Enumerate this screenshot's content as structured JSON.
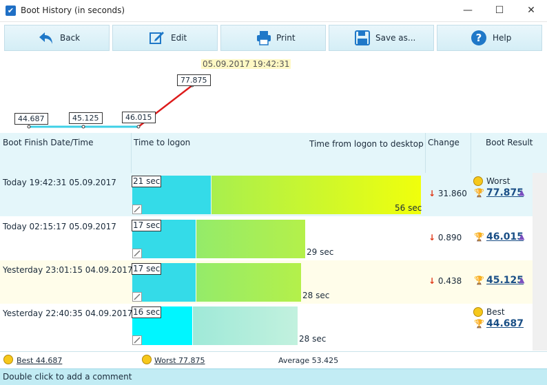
{
  "window": {
    "title": "Boot History (in seconds)",
    "minimize_glyph": "—",
    "maximize_glyph": "☐",
    "close_glyph": "✕"
  },
  "toolbar": {
    "back_label": "Back",
    "edit_label": "Edit",
    "print_label": "Print",
    "save_label": "Save as...",
    "help_label": "Help"
  },
  "chart": {
    "date_label": "05.09.2017 19:42:31",
    "points": [
      "44.687",
      "45.125",
      "46.015",
      "77.875"
    ]
  },
  "table": {
    "headers": {
      "date": "Boot Finish Date/Time",
      "logon": "Time to logon",
      "desktop": "Time from logon to desktop",
      "change": "Change",
      "result": "Boot Result"
    },
    "rows": [
      {
        "date": "Today  19:42:31 05.09.2017",
        "logon": "21 sec",
        "logon_seconds": 21,
        "desktop": "56 sec",
        "desktop_seconds": 56,
        "change": "31.860",
        "result_label": "Worst",
        "result": "77.875",
        "bg": "#e4f6fa",
        "logon_color": "#34dbe8",
        "desk_gradient": "linear-gradient(90deg, #a8ef4e, #f0ff0c)"
      },
      {
        "date": "Today  02:15:17 05.09.2017",
        "logon": "17 sec",
        "logon_seconds": 17,
        "desktop": "29 sec",
        "desktop_seconds": 29,
        "change": "0.890",
        "result_label": "",
        "result": "46.015",
        "bg": "#ffffff",
        "logon_color": "#34dbe8",
        "desk_gradient": "linear-gradient(90deg, #94eb6a, #b4f04a)"
      },
      {
        "date": "Yesterday  23:01:15 04.09.2017",
        "logon": "17 sec",
        "logon_seconds": 17,
        "desktop": "28 sec",
        "desktop_seconds": 28,
        "change": "0.438",
        "result_label": "",
        "result": "45.125",
        "bg": "#fffdea",
        "logon_color": "#34dbe8",
        "desk_gradient": "linear-gradient(90deg, #94eb6a, #b4f04a)"
      },
      {
        "date": "Yesterday  22:40:35 04.09.2017",
        "logon": "16 sec",
        "logon_seconds": 16,
        "desktop": "28 sec",
        "desktop_seconds": 28,
        "change": "",
        "result_label": "Best",
        "result": "44.687",
        "bg": "#ffffff",
        "logon_color": "#00f6ff",
        "desk_gradient": "linear-gradient(90deg, #9fe9d8, #c2f1de)"
      }
    ]
  },
  "footer": {
    "best": "Best 44.687",
    "worst": "Worst 77.875",
    "average": "Average 53.425"
  },
  "status": {
    "text": "Double click to add a comment"
  }
}
